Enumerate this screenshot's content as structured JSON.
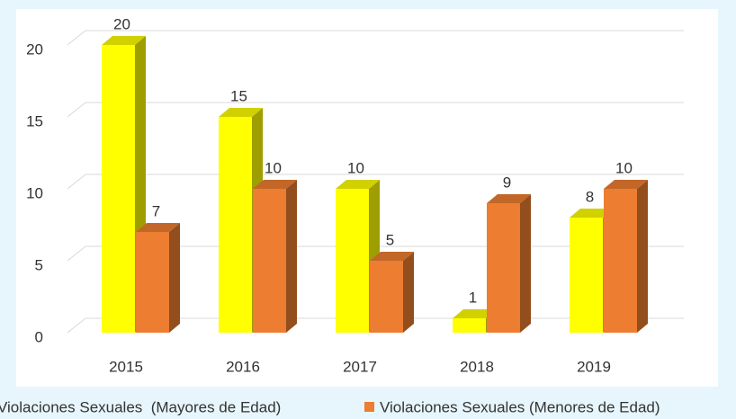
{
  "chart_data": {
    "type": "bar3d",
    "categories": [
      "2015",
      "2016",
      "2017",
      "2018",
      "2019"
    ],
    "series": [
      {
        "name": "Violaciones Sexuales  (Mayores de Edad)",
        "color": "#ffff00",
        "values": [
          20,
          15,
          10,
          1,
          8
        ]
      },
      {
        "name": "Violaciones Sexuales (Menores de Edad)",
        "color": "#ed7d31",
        "values": [
          7,
          10,
          5,
          9,
          10
        ]
      }
    ],
    "ylim": [
      0,
      20
    ],
    "yticks": [
      0,
      5,
      10,
      15,
      20
    ],
    "grid": true,
    "legend": "bottom"
  }
}
